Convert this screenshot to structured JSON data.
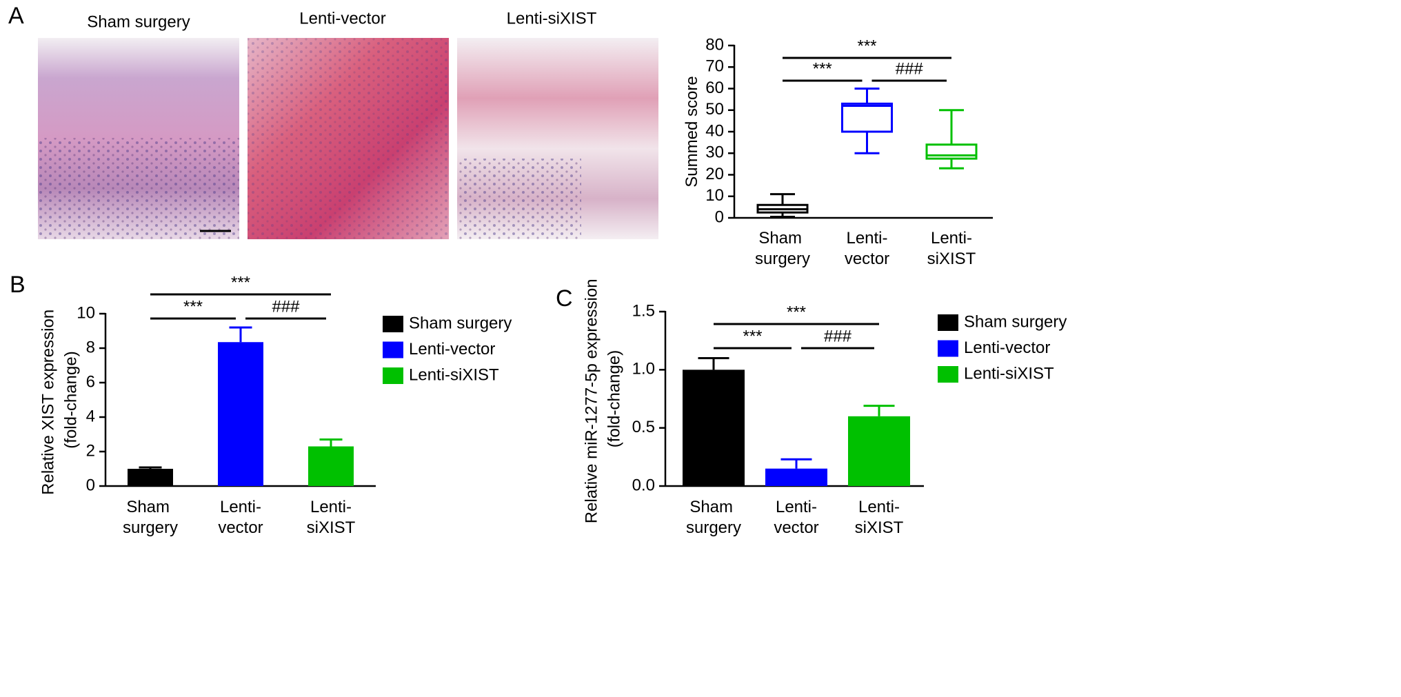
{
  "panels": [
    "A",
    "B",
    "C"
  ],
  "images": {
    "titles": [
      "Sham surgery",
      "Lenti-vector",
      "Lenti-siXIST"
    ]
  },
  "chart_data": [
    {
      "type": "box",
      "y_label": "Summed score",
      "categories": [
        "Sham surgery",
        "Lenti-vector",
        "Lenti-siXIST"
      ],
      "colors": [
        "#000000",
        "#0000ff",
        "#00c000"
      ],
      "boxes": [
        {
          "min": 0.5,
          "q1": 2.5,
          "median": 4,
          "q3": 6,
          "max": 11
        },
        {
          "min": 30,
          "q1": 40,
          "median": 52,
          "q3": 53,
          "max": 60
        },
        {
          "min": 23,
          "q1": 27.5,
          "median": 29,
          "q3": 34,
          "max": 50
        }
      ],
      "ylim": [
        0,
        80
      ],
      "yticks": [
        0,
        10,
        20,
        30,
        40,
        50,
        60,
        70,
        80
      ],
      "annotations": [
        {
          "text": "***",
          "between": [
            "Sham surgery",
            "Lenti-vector"
          ]
        },
        {
          "text": "###",
          "between": [
            "Lenti-vector",
            "Lenti-siXIST"
          ]
        },
        {
          "text": "***",
          "between": [
            "Sham surgery",
            "Lenti-siXIST"
          ]
        }
      ]
    },
    {
      "type": "bar",
      "y_label": "Relative XIST expression (fold-change)",
      "categories": [
        "Sham surgery",
        "Lenti-vector",
        "Lenti-siXIST"
      ],
      "colors": [
        "#000000",
        "#0000ff",
        "#00c000"
      ],
      "values": [
        1.0,
        8.35,
        2.3
      ],
      "errors": [
        0.08,
        0.85,
        0.4
      ],
      "ylim": [
        0,
        10
      ],
      "yticks": [
        0,
        2,
        4,
        6,
        8,
        10
      ],
      "legend": "right",
      "annotations": [
        {
          "text": "***",
          "between": [
            "Sham surgery",
            "Lenti-vector"
          ]
        },
        {
          "text": "###",
          "between": [
            "Lenti-vector",
            "Lenti-siXIST"
          ]
        },
        {
          "text": "***",
          "between": [
            "Sham surgery",
            "Lenti-siXIST"
          ]
        }
      ]
    },
    {
      "type": "bar",
      "y_label": "Relative miR-1277-5p expression (fold-change)",
      "categories": [
        "Sham surgery",
        "Lenti-vector",
        "Lenti-siXIST"
      ],
      "colors": [
        "#000000",
        "#0000ff",
        "#00c000"
      ],
      "values": [
        1.0,
        0.15,
        0.6
      ],
      "errors": [
        0.1,
        0.08,
        0.09
      ],
      "ylim": [
        0,
        1.5
      ],
      "yticks": [
        {
          "value": 0,
          "label": "0.0"
        },
        {
          "value": 0.5,
          "label": "0.5"
        },
        {
          "value": 1,
          "label": "1.0"
        },
        {
          "value": 1.5,
          "label": "1.5"
        }
      ],
      "legend": "right",
      "annotations": [
        {
          "text": "***",
          "between": [
            "Sham surgery",
            "Lenti-vector"
          ]
        },
        {
          "text": "###",
          "between": [
            "Lenti-vector",
            "Lenti-siXIST"
          ]
        },
        {
          "text": "***",
          "between": [
            "Sham surgery",
            "Lenti-siXIST"
          ]
        }
      ]
    }
  ]
}
